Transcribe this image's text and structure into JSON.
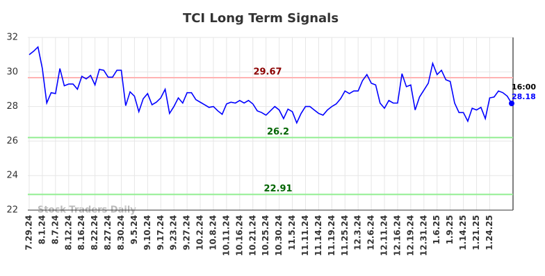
{
  "chart_data": {
    "type": "line",
    "title": "TCI Long Term Signals",
    "categories": [
      "7.29.24",
      null,
      null,
      "8.1.24",
      null,
      null,
      "8.7.24",
      null,
      null,
      "8.12.24",
      null,
      null,
      "8.16.24",
      null,
      null,
      "8.22.24",
      null,
      null,
      "8.27.24",
      null,
      null,
      "8.30.24",
      null,
      null,
      "9.5.24",
      null,
      null,
      "9.10.24",
      null,
      null,
      "9.17.24",
      null,
      null,
      "9.23.24",
      null,
      null,
      "9.27.24",
      null,
      null,
      "10.2.24",
      null,
      null,
      "10.8.24",
      null,
      null,
      "10.11.24",
      null,
      null,
      "10.16.24",
      null,
      null,
      "10.21.24",
      null,
      null,
      "10.25.24",
      null,
      null,
      "10.30.24",
      null,
      null,
      "11.5.24",
      null,
      null,
      "11.11.24",
      null,
      null,
      "11.14.24",
      null,
      null,
      "11.19.24",
      null,
      null,
      "11.25.24",
      null,
      null,
      "12.3.24",
      null,
      null,
      "12.6.24",
      null,
      null,
      "12.11.24",
      null,
      null,
      "12.16.24",
      null,
      null,
      "12.19.24",
      null,
      null,
      "12.31.24",
      null,
      null,
      "1.6.25",
      null,
      null,
      "1.9.25",
      null,
      null,
      "1.14.25",
      null,
      null,
      "1.21.25",
      null,
      null,
      "1.24.25",
      null,
      null,
      null,
      null,
      null
    ],
    "values": [
      31.0,
      31.2,
      31.45,
      30.2,
      28.2,
      28.8,
      28.75,
      30.2,
      29.2,
      29.3,
      29.3,
      29.0,
      29.75,
      29.6,
      29.8,
      29.25,
      30.15,
      30.1,
      29.7,
      29.7,
      30.1,
      30.1,
      28.05,
      28.85,
      28.6,
      27.7,
      28.45,
      28.75,
      28.1,
      28.25,
      28.5,
      29.0,
      27.6,
      28.0,
      28.5,
      28.2,
      28.8,
      28.8,
      28.4,
      28.25,
      28.1,
      27.95,
      28.0,
      27.75,
      27.55,
      28.15,
      28.25,
      28.2,
      28.35,
      28.2,
      28.35,
      28.15,
      27.75,
      27.65,
      27.5,
      27.75,
      28.0,
      27.8,
      27.3,
      27.85,
      27.7,
      27.05,
      27.6,
      28.0,
      28.0,
      27.8,
      27.6,
      27.5,
      27.8,
      28.0,
      28.15,
      28.45,
      28.9,
      28.75,
      28.9,
      28.9,
      29.5,
      29.85,
      29.35,
      29.25,
      28.2,
      27.9,
      28.35,
      28.2,
      28.2,
      29.9,
      29.15,
      29.25,
      27.8,
      28.55,
      28.95,
      29.35,
      30.5,
      29.85,
      30.1,
      29.55,
      29.45,
      28.2,
      27.65,
      27.65,
      27.15,
      27.9,
      27.8,
      27.95,
      27.3,
      28.5,
      28.55,
      28.9,
      28.8,
      28.6,
      28.18
    ],
    "color": "#0000ff",
    "ylim": [
      22,
      32
    ],
    "yticks": [
      22,
      24,
      26,
      28,
      30,
      32
    ],
    "grid": true,
    "reference_lines": [
      {
        "value": 29.67,
        "color": "#ffb3b3",
        "label_color": "#8b0000"
      },
      {
        "value": 26.2,
        "color": "#90ee90",
        "label_color": "#006400"
      },
      {
        "value": 22.91,
        "color": "#90ee90",
        "label_color": "#006400"
      }
    ],
    "last_time": "16:00",
    "watermark": "Stock Traders Daily"
  }
}
